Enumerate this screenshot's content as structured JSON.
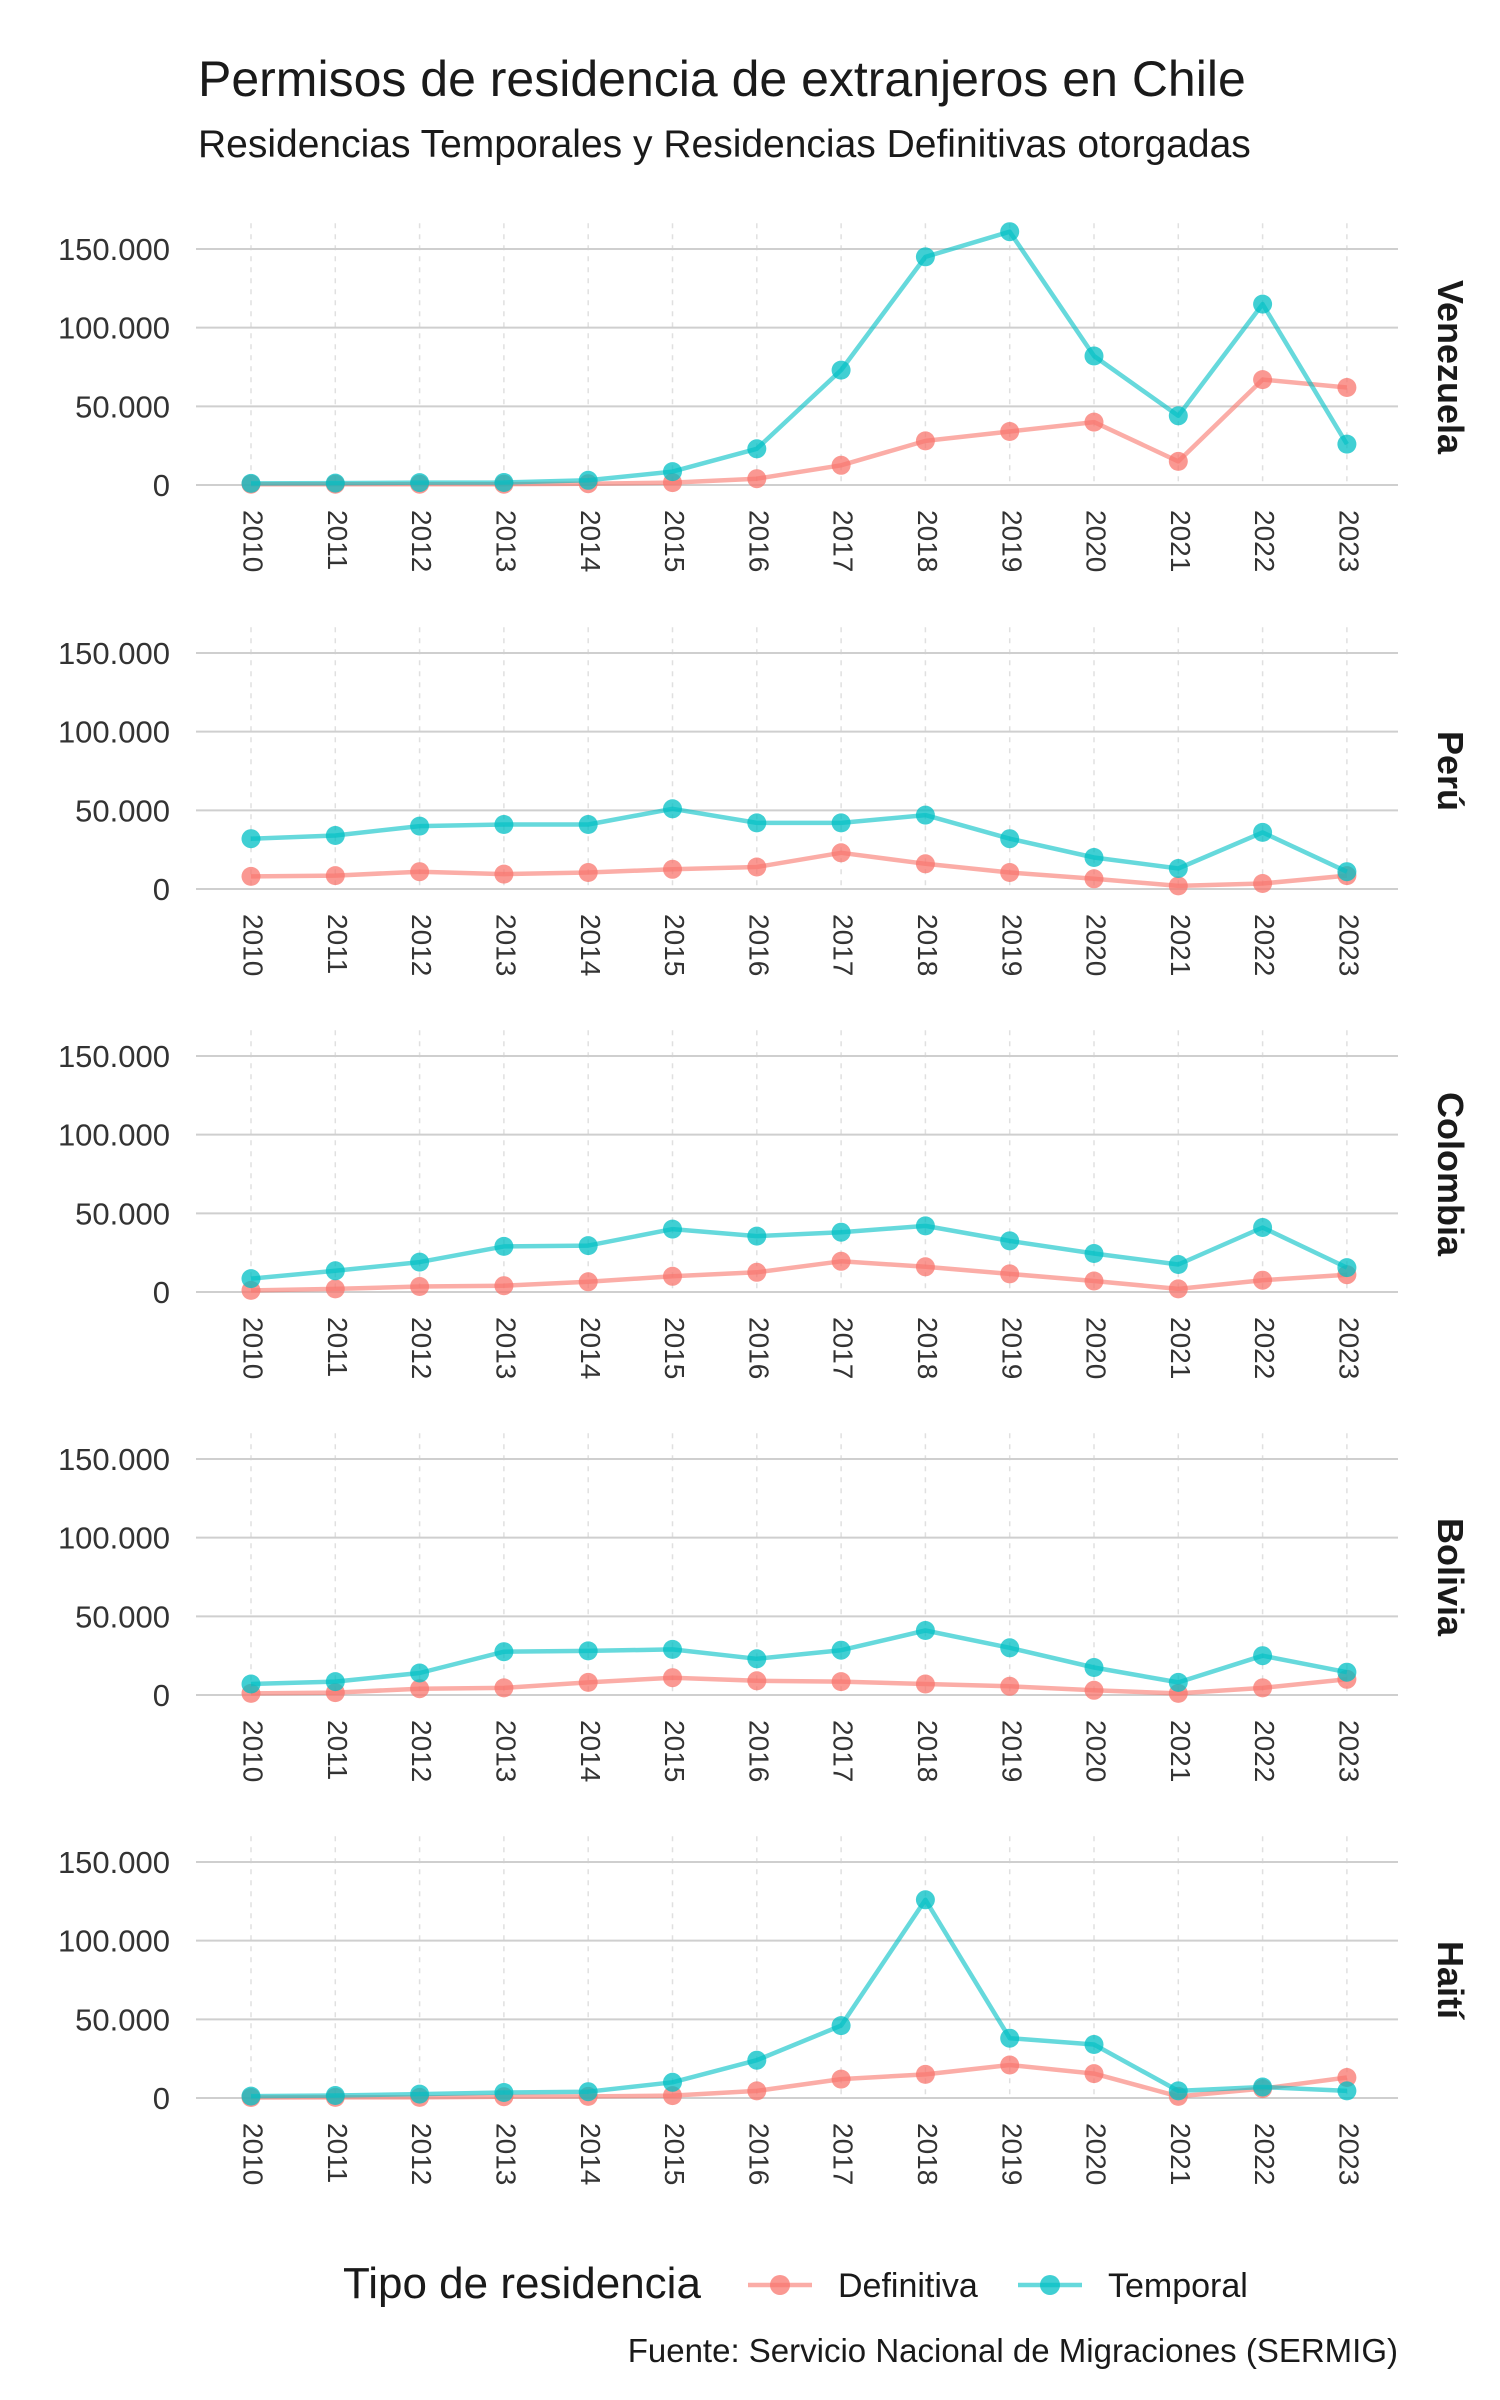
{
  "chart_data": {
    "type": "line",
    "title": "Permisos de residencia de extranjeros en Chile",
    "subtitle": "Residencias Temporales y Residencias Definitivas otorgadas",
    "caption": "Fuente: Servicio Nacional de Migraciones (SERMIG)",
    "x": [
      "2010",
      "2011",
      "2012",
      "2013",
      "2014",
      "2015",
      "2016",
      "2017",
      "2018",
      "2019",
      "2020",
      "2021",
      "2022",
      "2023"
    ],
    "ylim": [
      0,
      160000
    ],
    "yticks": [
      0,
      50000,
      100000,
      150000
    ],
    "ytick_labels": [
      "0",
      "50.000",
      "100.000",
      "150.000"
    ],
    "legend": {
      "title": "Tipo de residencia",
      "position": "bottom",
      "entries": [
        {
          "name": "Definitiva",
          "color": "#F8766D"
        },
        {
          "name": "Temporal",
          "color": "#00BFC4"
        }
      ]
    },
    "panels": [
      {
        "name": "Venezuela",
        "series": [
          {
            "name": "Definitiva",
            "values": [
              500,
              500,
              500,
              500,
              800,
              1500,
              4000,
              12500,
              28000,
              34000,
              40000,
              15000,
              67000,
              62000
            ]
          },
          {
            "name": "Temporal",
            "values": [
              1000,
              1200,
              1500,
              1600,
              3000,
              8500,
              23000,
              73000,
              145000,
              161000,
              82000,
              44000,
              115000,
              26000
            ]
          }
        ]
      },
      {
        "name": "Perú",
        "series": [
          {
            "name": "Definitiva",
            "values": [
              8000,
              8500,
              11000,
              9500,
              10500,
              12500,
              14000,
              23000,
              16000,
              10500,
              6500,
              2000,
              3500,
              8500
            ]
          },
          {
            "name": "Temporal",
            "values": [
              32000,
              34000,
              40000,
              41000,
              41000,
              51000,
              42000,
              42000,
              47000,
              32000,
              20000,
              13000,
              36000,
              11000
            ]
          }
        ]
      },
      {
        "name": "Colombia",
        "series": [
          {
            "name": "Definitiva",
            "values": [
              1000,
              2000,
              3500,
              4000,
              6500,
              10000,
              12500,
              19500,
              16000,
              11500,
              7000,
              2000,
              7500,
              11000
            ]
          },
          {
            "name": "Temporal",
            "values": [
              8500,
              13500,
              19000,
              29000,
              29500,
              40000,
              35500,
              38000,
              42000,
              32500,
              24500,
              17500,
              41000,
              15500
            ]
          }
        ]
      },
      {
        "name": "Bolivia",
        "series": [
          {
            "name": "Definitiva",
            "values": [
              1000,
              1500,
              4000,
              4500,
              8000,
              11000,
              9000,
              8500,
              7000,
              5500,
              3000,
              1000,
              4500,
              10000
            ]
          },
          {
            "name": "Temporal",
            "values": [
              7000,
              8500,
              14000,
              27500,
              28000,
              29000,
              23000,
              28500,
              41000,
              30000,
              17500,
              8000,
              25000,
              14500
            ]
          }
        ]
      },
      {
        "name": "Haití",
        "series": [
          {
            "name": "Definitiva",
            "values": [
              300,
              400,
              400,
              800,
              1000,
              1500,
              4500,
              12000,
              15000,
              21000,
              15500,
              1000,
              6000,
              13000
            ]
          },
          {
            "name": "Temporal",
            "values": [
              1200,
              1600,
              2500,
              3500,
              4000,
              10000,
              24000,
              46000,
              126000,
              38000,
              34000,
              4500,
              7000,
              4500
            ]
          }
        ]
      }
    ]
  }
}
